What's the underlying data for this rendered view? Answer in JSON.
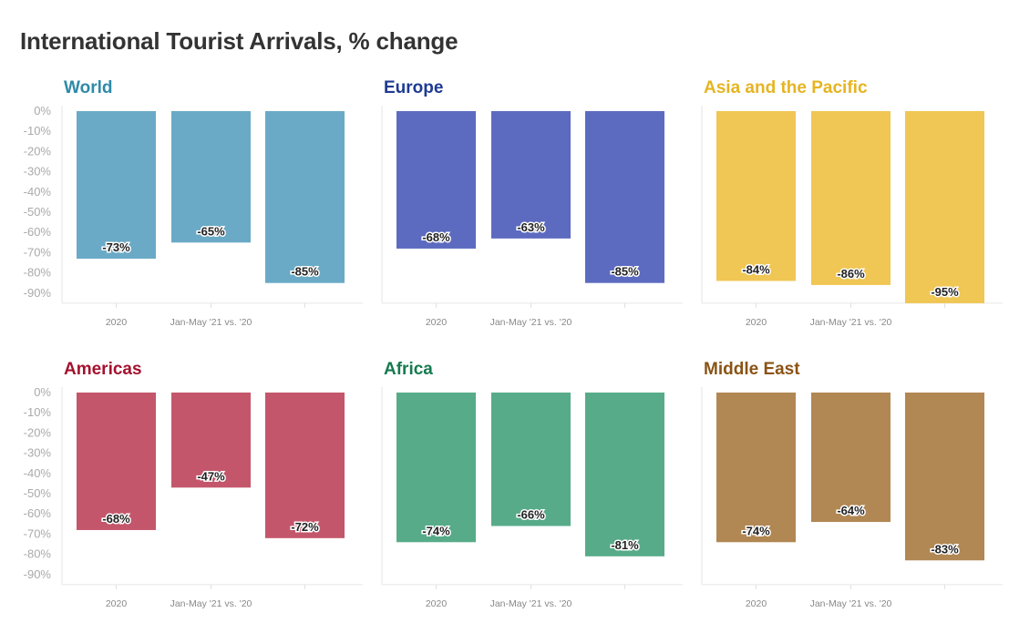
{
  "page": {
    "title": "International Tourist Arrivals, % change"
  },
  "chart_data": [
    {
      "type": "bar",
      "title": "World",
      "color": "#6aaac6",
      "categories": [
        "2020",
        "Jan-May '21 vs. '20",
        ""
      ],
      "values": [
        -73,
        -65,
        -85
      ],
      "value_labels": [
        "-73%",
        "-65%",
        "-85%"
      ],
      "ylim": [
        -95,
        0
      ],
      "yticks": [
        0,
        -10,
        -20,
        -30,
        -40,
        -50,
        -60,
        -70,
        -80,
        -90
      ],
      "ytick_labels": [
        "0%",
        "-10%",
        "-20%",
        "-30%",
        "-40%",
        "-50%",
        "-60%",
        "-70%",
        "-80%",
        "-90%"
      ]
    },
    {
      "type": "bar",
      "title": "Europe",
      "color": "#5c6bc0",
      "categories": [
        "2020",
        "Jan-May '21 vs. '20",
        ""
      ],
      "values": [
        -68,
        -63,
        -85
      ],
      "value_labels": [
        "-68%",
        "-63%",
        "-85%"
      ],
      "ylim": [
        -95,
        0
      ]
    },
    {
      "type": "bar",
      "title": "Asia and the Pacific",
      "color": "#f0c654",
      "categories": [
        "2020",
        "Jan-May '21 vs. '20",
        ""
      ],
      "values": [
        -84,
        -86,
        -95
      ],
      "value_labels": [
        "-84%",
        "-86%",
        "-95%"
      ],
      "ylim": [
        -95,
        0
      ]
    },
    {
      "type": "bar",
      "title": "Americas",
      "color": "#c4566b",
      "categories": [
        "2020",
        "Jan-May '21 vs. '20",
        ""
      ],
      "values": [
        -68,
        -47,
        -72
      ],
      "value_labels": [
        "-68%",
        "-47%",
        "-72%"
      ],
      "ylim": [
        -95,
        0
      ],
      "yticks": [
        0,
        -10,
        -20,
        -30,
        -40,
        -50,
        -60,
        -70,
        -80,
        -90
      ],
      "ytick_labels": [
        "0%",
        "-10%",
        "-20%",
        "-30%",
        "-40%",
        "-50%",
        "-60%",
        "-70%",
        "-80%",
        "-90%"
      ]
    },
    {
      "type": "bar",
      "title": "Africa",
      "color": "#57ab89",
      "categories": [
        "2020",
        "Jan-May '21 vs. '20",
        ""
      ],
      "values": [
        -74,
        -66,
        -81
      ],
      "value_labels": [
        "-74%",
        "-66%",
        "-81%"
      ],
      "ylim": [
        -95,
        0
      ]
    },
    {
      "type": "bar",
      "title": "Middle East",
      "color": "#b18753",
      "categories": [
        "2020",
        "Jan-May '21 vs. '20",
        ""
      ],
      "values": [
        -74,
        -64,
        -83
      ],
      "value_labels": [
        "-74%",
        "-64%",
        "-83%"
      ],
      "ylim": [
        -95,
        0
      ]
    }
  ],
  "title_colors": [
    "#2e8aa8",
    "#1f3a93",
    "#e6b422",
    "#a3122f",
    "#167a50",
    "#8a5314"
  ]
}
